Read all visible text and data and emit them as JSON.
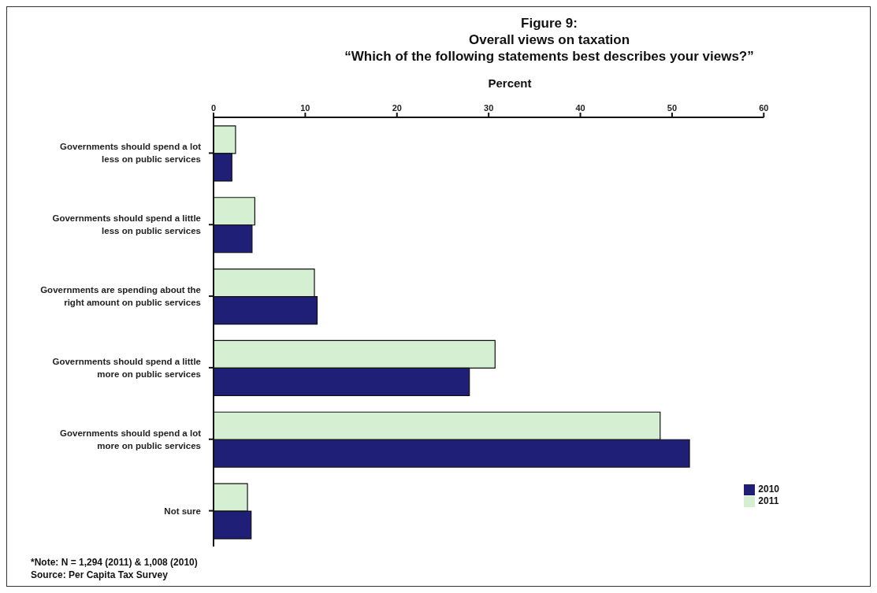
{
  "chart_data": {
    "type": "bar",
    "orientation": "horizontal",
    "title": "Figure 9:\nOverall views on taxation",
    "subtitle": "“Which of the following statements best describes your views?”",
    "xlabel": "Percent",
    "categories": [
      "Governments should spend a lot less on public services",
      "Governments should spend a little less on public services",
      "Governments are spending about the right amount on public services",
      "Governments should spend a little more on public services",
      "Governments should spend a lot more on public services",
      "Not sure"
    ],
    "series": [
      {
        "name": "2011",
        "color": "#d5efd3",
        "values": [
          2.4,
          4.5,
          11.0,
          30.7,
          48.7,
          3.7
        ]
      },
      {
        "name": "2010",
        "color": "#1f1f78",
        "values": [
          2.0,
          4.2,
          11.3,
          27.9,
          51.9,
          4.1
        ]
      }
    ],
    "xlim": [
      0,
      60
    ],
    "xticks": [
      0,
      10,
      20,
      30,
      40,
      50,
      60
    ],
    "grid": false,
    "legend": "bottom right",
    "annotations": [
      "*Note: N = 1,294 (2011) & 1,008 (2010)",
      "Source: Per Capita Tax Survey"
    ]
  }
}
